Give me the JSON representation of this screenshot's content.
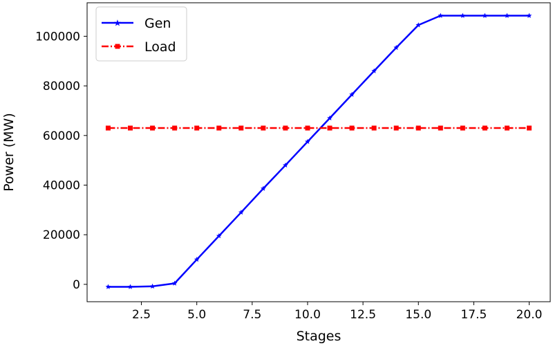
{
  "chart_data": {
    "type": "line",
    "xlabel": "Stages",
    "ylabel": "Power (MW)",
    "xlim": [
      0.05,
      20.95
    ],
    "ylim": [
      -7000,
      113500
    ],
    "xticks": [
      2.5,
      5.0,
      7.5,
      10.0,
      12.5,
      15.0,
      17.5,
      20.0
    ],
    "xtick_labels": [
      "2.5",
      "5.0",
      "7.5",
      "10.0",
      "12.5",
      "15.0",
      "17.5",
      "20.0"
    ],
    "yticks": [
      0,
      20000,
      40000,
      60000,
      80000,
      100000
    ],
    "ytick_labels": [
      "0",
      "20000",
      "40000",
      "60000",
      "80000",
      "100000"
    ],
    "grid": false,
    "legend_position": "top-left",
    "x": [
      1,
      2,
      3,
      4,
      5,
      6,
      7,
      8,
      9,
      10,
      11,
      12,
      13,
      14,
      15,
      16,
      17,
      18,
      19,
      20
    ],
    "series": [
      {
        "name": "Gen",
        "color": "#0000ff",
        "linestyle": "solid",
        "marker": "star",
        "values": [
          -1000,
          -1000,
          -800,
          400,
          10000,
          19500,
          29000,
          38600,
          48000,
          57500,
          67000,
          76500,
          86000,
          95400,
          104500,
          108300,
          108300,
          108300,
          108300,
          108300
        ]
      },
      {
        "name": "Load",
        "color": "#ff0000",
        "linestyle": "dashdot",
        "marker": "square",
        "values": [
          63000,
          63000,
          63000,
          63000,
          63000,
          63000,
          63000,
          63000,
          63000,
          63000,
          63000,
          63000,
          63000,
          63000,
          63000,
          63000,
          63000,
          63000,
          63000,
          63000
        ]
      }
    ]
  }
}
